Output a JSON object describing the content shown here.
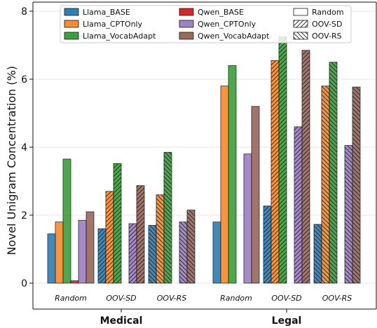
{
  "chart_data": {
    "type": "bar",
    "ylabel": "Novel Unigram Concentration (%)",
    "ylim": [
      0,
      8.3
    ],
    "yticks": [
      0,
      2,
      4,
      6,
      8
    ],
    "domains": [
      "Medical",
      "Legal"
    ],
    "groups": [
      "Random",
      "OOV-SD",
      "OOV-RS"
    ],
    "grid": true,
    "legend_position": "top",
    "series": [
      {
        "name": "Llama_BASE",
        "color": "#2f7fb6",
        "values": {
          "Medical": [
            1.45,
            1.6,
            1.7
          ],
          "Legal": [
            1.8,
            2.27,
            1.73
          ]
        }
      },
      {
        "name": "Llama_CPTOnly",
        "color": "#fb8b2c",
        "values": {
          "Medical": [
            1.8,
            2.7,
            2.6
          ],
          "Legal": [
            5.8,
            6.55,
            5.8
          ]
        }
      },
      {
        "name": "Llama_VocabAdapt",
        "color": "#3ba23b",
        "values": {
          "Medical": [
            3.65,
            3.52,
            3.85
          ],
          "Legal": [
            6.4,
            7.25,
            6.5
          ]
        }
      },
      {
        "name": "Qwen_BASE",
        "color": "#d62728",
        "values": {
          "Medical": [
            0.07,
            0,
            0
          ],
          "Legal": [
            0,
            0,
            0
          ]
        }
      },
      {
        "name": "Qwen_CPTOnly",
        "color": "#a081c4",
        "values": {
          "Medical": [
            1.85,
            1.75,
            1.8
          ],
          "Legal": [
            3.8,
            4.6,
            4.05
          ]
        }
      },
      {
        "name": "Qwen_VocabAdapt",
        "color": "#9a6a5e",
        "values": {
          "Medical": [
            2.1,
            2.87,
            2.15
          ],
          "Legal": [
            5.2,
            6.85,
            5.77
          ]
        }
      }
    ],
    "pattern_legend": [
      {
        "name": "Random",
        "hatch": "none"
      },
      {
        "name": "OOV-SD",
        "hatch": "forward"
      },
      {
        "name": "OOV-RS",
        "hatch": "backward"
      }
    ]
  }
}
